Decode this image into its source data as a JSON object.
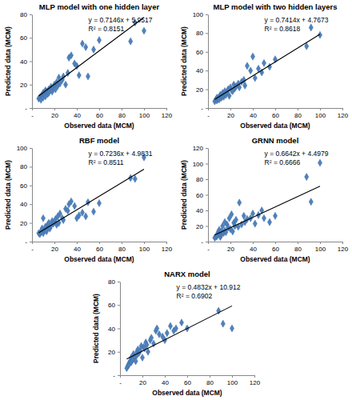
{
  "chart_data": [
    {
      "type": "scatter",
      "title": "MLP model with one hidden layer",
      "x_label": "Observed data (MCM)",
      "y_label": "Predicted data (MCM)",
      "color": "#4f81bd",
      "marker": "diamond",
      "x": [
        6,
        7,
        8,
        8,
        9,
        10,
        10,
        11,
        12,
        12,
        13,
        14,
        15,
        15,
        16,
        17,
        18,
        19,
        20,
        21,
        22,
        23,
        24,
        25,
        27,
        28,
        30,
        32,
        33,
        35,
        38,
        40,
        42,
        45,
        48,
        50,
        55,
        60,
        88,
        92,
        100
      ],
      "values": [
        8,
        9,
        10,
        7,
        11,
        9,
        13,
        12,
        10,
        15,
        14,
        12,
        16,
        13,
        15,
        18,
        14,
        17,
        20,
        16,
        22,
        19,
        26,
        21,
        24,
        27,
        20,
        30,
        43,
        45,
        38,
        36,
        28,
        55,
        52,
        27,
        50,
        58,
        57,
        73,
        66
      ],
      "xlim": [
        0,
        120
      ],
      "xticks": [
        {
          "value": 0,
          "label": "-"
        },
        20,
        40,
        60,
        80,
        100,
        120
      ],
      "ylim": [
        0,
        80
      ],
      "yticks": [
        {
          "value": 0,
          "label": "-"
        },
        20,
        40,
        60,
        80
      ],
      "trendline": {
        "slope": 0.7146,
        "intercept": 5.9517
      },
      "annotations": [
        "y = 0.7146x + 5.9517",
        "R² = 0.8151"
      ]
    },
    {
      "type": "scatter",
      "title": "MLP model with two hidden layers",
      "x_label": "Observed data (MCM)",
      "y_label": "Predicted data (MCM)",
      "color": "#4f81bd",
      "marker": "diamond",
      "x": [
        6,
        7,
        8,
        8,
        9,
        10,
        10,
        11,
        12,
        12,
        13,
        14,
        15,
        15,
        16,
        17,
        18,
        19,
        20,
        21,
        22,
        23,
        24,
        25,
        27,
        28,
        30,
        32,
        33,
        35,
        38,
        40,
        42,
        45,
        48,
        50,
        55,
        60,
        88,
        92,
        100
      ],
      "values": [
        7,
        9,
        8,
        11,
        10,
        12,
        9,
        14,
        11,
        13,
        16,
        12,
        15,
        18,
        14,
        17,
        20,
        13,
        22,
        19,
        18,
        25,
        21,
        23,
        26,
        22,
        28,
        30,
        24,
        45,
        40,
        55,
        32,
        42,
        38,
        48,
        44,
        52,
        66,
        86,
        78
      ],
      "xlim": [
        0,
        120
      ],
      "xticks": [
        {
          "value": 0,
          "label": "-"
        },
        20,
        40,
        60,
        80,
        100,
        120
      ],
      "ylim": [
        0,
        100
      ],
      "yticks": [
        {
          "value": 0,
          "label": "-"
        },
        20,
        40,
        60,
        80,
        100
      ],
      "trendline": {
        "slope": 0.7414,
        "intercept": 4.7673
      },
      "annotations": [
        "y = 0.7414x + 4.7673",
        "R² = 0.8618"
      ]
    },
    {
      "type": "scatter",
      "title": "RBF model",
      "x_label": "Observed data (MCM)",
      "y_label": "Predicted data (MCM)",
      "color": "#4f81bd",
      "marker": "diamond",
      "x": [
        6,
        7,
        8,
        8,
        9,
        10,
        10,
        11,
        12,
        12,
        13,
        14,
        15,
        15,
        16,
        17,
        18,
        19,
        20,
        21,
        22,
        23,
        24,
        25,
        27,
        28,
        30,
        32,
        33,
        35,
        38,
        40,
        42,
        45,
        48,
        50,
        55,
        60,
        88,
        92,
        100
      ],
      "values": [
        9,
        8,
        11,
        10,
        14,
        9,
        25,
        12,
        13,
        16,
        11,
        18,
        15,
        20,
        14,
        17,
        22,
        19,
        21,
        24,
        18,
        27,
        20,
        30,
        25,
        23,
        35,
        33,
        40,
        43,
        38,
        25,
        28,
        31,
        27,
        42,
        32,
        41,
        68,
        67,
        90
      ],
      "xlim": [
        0,
        120
      ],
      "xticks": [
        {
          "value": 0,
          "label": "-"
        },
        20,
        40,
        60,
        80,
        100,
        120
      ],
      "ylim": [
        0,
        100
      ],
      "yticks": [
        {
          "value": 0,
          "label": "-"
        },
        20,
        40,
        60,
        80,
        100
      ],
      "trendline": {
        "slope": 0.7236,
        "intercept": 4.9831
      },
      "annotations": [
        "y = 0.7236x + 4.9831",
        "R² = 0.8511"
      ]
    },
    {
      "type": "scatter",
      "title": "GRNN model",
      "x_label": "Observed data (MCM)",
      "y_label": "Predicted data (MCM)",
      "color": "#4f81bd",
      "marker": "diamond",
      "x": [
        6,
        7,
        8,
        8,
        9,
        10,
        10,
        11,
        12,
        12,
        13,
        14,
        15,
        15,
        16,
        17,
        18,
        19,
        20,
        21,
        22,
        23,
        24,
        25,
        27,
        28,
        30,
        32,
        33,
        35,
        38,
        40,
        42,
        45,
        48,
        50,
        55,
        60,
        88,
        92,
        100
      ],
      "values": [
        5,
        6,
        7,
        8,
        12,
        10,
        15,
        6,
        9,
        13,
        20,
        11,
        14,
        25,
        12,
        22,
        18,
        30,
        16,
        35,
        13,
        24,
        20,
        28,
        19,
        50,
        22,
        33,
        25,
        29,
        30,
        36,
        23,
        34,
        40,
        30,
        25,
        33,
        83,
        51,
        101
      ],
      "xlim": [
        0,
        120
      ],
      "xticks": [
        {
          "value": 0,
          "label": "-"
        },
        20,
        40,
        60,
        80,
        100,
        120
      ],
      "ylim": [
        0,
        120
      ],
      "yticks": [
        {
          "value": 0,
          "label": "-"
        },
        20,
        40,
        60,
        80,
        100,
        120
      ],
      "trendline": {
        "slope": 0.6642,
        "intercept": 4.4979
      },
      "annotations": [
        "y = 0.6642x + 4.4979",
        "R² = 0.6666"
      ]
    },
    {
      "type": "scatter",
      "title": "NARX model",
      "x_label": "Observed data (MCM)",
      "y_label": "Predicted  data (MCM)",
      "color": "#4f81bd",
      "marker": "diamond",
      "x": [
        6,
        7,
        8,
        8,
        9,
        10,
        10,
        11,
        12,
        12,
        13,
        14,
        15,
        15,
        16,
        17,
        18,
        19,
        20,
        21,
        22,
        23,
        24,
        25,
        27,
        28,
        30,
        32,
        33,
        35,
        38,
        40,
        42,
        45,
        48,
        50,
        55,
        60,
        88,
        92,
        100
      ],
      "values": [
        6,
        8,
        10,
        9,
        12,
        11,
        15,
        13,
        14,
        18,
        16,
        12,
        20,
        17,
        22,
        19,
        21,
        25,
        15,
        24,
        23,
        28,
        26,
        20,
        30,
        32,
        27,
        38,
        40,
        35,
        33,
        30,
        36,
        42,
        38,
        40,
        45,
        40,
        55,
        44,
        40
      ],
      "xlim": [
        0,
        120
      ],
      "xticks": [
        {
          "value": 0,
          "label": "-"
        },
        20,
        40,
        60,
        80,
        100,
        120
      ],
      "ylim": [
        0,
        80
      ],
      "yticks": [
        {
          "value": 0,
          "label": "-"
        },
        20,
        40,
        60,
        80
      ],
      "trendline": {
        "slope": 0.4832,
        "intercept": 10.912
      },
      "annotations": [
        "y = 0.4832x + 10.912",
        "R² = 0.6902"
      ]
    }
  ]
}
